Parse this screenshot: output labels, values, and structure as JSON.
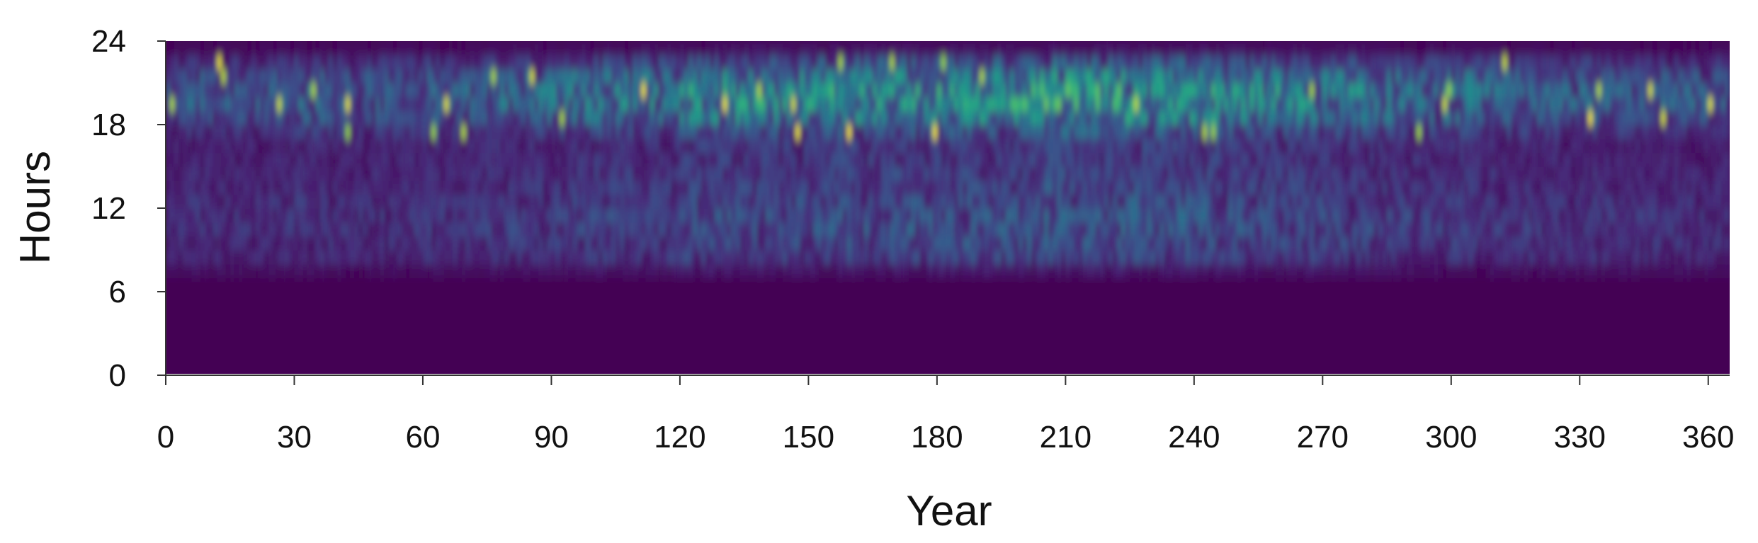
{
  "chart_data": {
    "type": "heatmap",
    "title": "",
    "xlabel": "Year",
    "ylabel": "Hours",
    "xlim": [
      0,
      365
    ],
    "ylim": [
      0,
      24
    ],
    "x_ticks": [
      0,
      30,
      60,
      90,
      120,
      150,
      180,
      210,
      240,
      270,
      300,
      330,
      360
    ],
    "y_ticks": [
      0,
      6,
      12,
      18,
      24
    ],
    "x_tick_labels": [
      "0",
      "30",
      "60",
      "90",
      "120",
      "150",
      "180",
      "210",
      "240",
      "270",
      "300",
      "330",
      "360"
    ],
    "y_tick_labels": [
      "0",
      "6",
      "12",
      "18",
      "24"
    ],
    "colormap": "viridis",
    "grid": false,
    "legend": "none",
    "day_step": 5,
    "hours": [
      0,
      1,
      2,
      3,
      4,
      5,
      6,
      7,
      8,
      9,
      10,
      11,
      12,
      13,
      14,
      15,
      16,
      17,
      18,
      19,
      20,
      21,
      22,
      23
    ],
    "intensity_by_hour": [
      0.0,
      0.0,
      0.0,
      0.0,
      0.0,
      0.0,
      0.0,
      0.06,
      0.16,
      0.18,
      0.2,
      0.2,
      0.18,
      0.16,
      0.15,
      0.14,
      0.14,
      0.2,
      0.32,
      0.38,
      0.38,
      0.32,
      0.2,
      0.04
    ],
    "days": [
      0,
      5,
      10,
      15,
      20,
      25,
      30,
      35,
      40,
      45,
      50,
      55,
      60,
      65,
      70,
      75,
      80,
      85,
      90,
      95,
      100,
      105,
      110,
      115,
      120,
      125,
      130,
      135,
      140,
      145,
      150,
      155,
      160,
      165,
      170,
      175,
      180,
      185,
      190,
      195,
      200,
      205,
      210,
      215,
      220,
      225,
      230,
      235,
      240,
      245,
      250,
      255,
      260,
      265,
      270,
      275,
      280,
      285,
      290,
      295,
      300,
      305,
      310,
      315,
      320,
      325,
      330,
      335,
      340,
      345,
      350,
      355,
      360
    ],
    "intensity_by_day": [
      0.55,
      0.62,
      0.6,
      0.58,
      0.6,
      0.62,
      0.68,
      0.66,
      0.62,
      0.6,
      0.62,
      0.64,
      0.66,
      0.62,
      0.64,
      0.7,
      0.74,
      0.76,
      0.78,
      0.82,
      0.86,
      0.84,
      0.82,
      0.8,
      1.0,
      1.02,
      1.0,
      0.98,
      0.96,
      0.96,
      1.0,
      1.1,
      1.05,
      1.02,
      1.08,
      1.02,
      1.05,
      1.1,
      1.08,
      1.06,
      1.1,
      1.2,
      1.15,
      1.1,
      1.15,
      1.1,
      1.05,
      1.08,
      1.06,
      1.02,
      0.98,
      0.96,
      0.95,
      0.92,
      0.9,
      0.86,
      0.82,
      0.8,
      0.78,
      0.76,
      0.78,
      0.72,
      0.7,
      0.68,
      0.68,
      0.66,
      0.7,
      0.66,
      0.64,
      0.62,
      0.6,
      0.6,
      0.58
    ]
  }
}
